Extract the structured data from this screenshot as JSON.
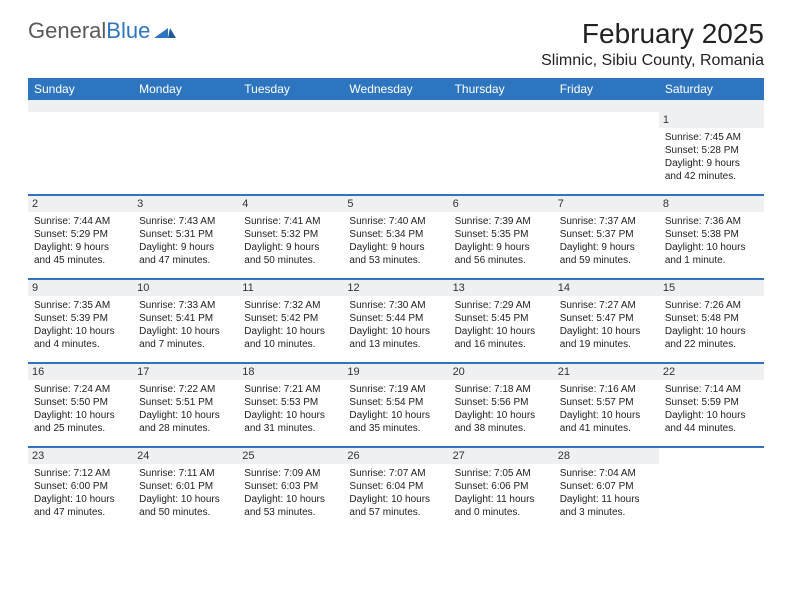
{
  "brand": {
    "part1": "General",
    "part2": "Blue"
  },
  "title": "February 2025",
  "location": "Slimnic, Sibiu County, Romania",
  "colors": {
    "accent": "#2e75c0",
    "header_bg": "#2e75c0",
    "header_text": "#ffffff",
    "daynum_bg": "#eef0f2",
    "text": "#222222",
    "page_bg": "#ffffff"
  },
  "weekdays": [
    "Sunday",
    "Monday",
    "Tuesday",
    "Wednesday",
    "Thursday",
    "Friday",
    "Saturday"
  ],
  "weeks": [
    [
      null,
      null,
      null,
      null,
      null,
      null,
      {
        "n": "1",
        "sunrise": "7:45 AM",
        "sunset": "5:28 PM",
        "daylight": "9 hours and 42 minutes."
      }
    ],
    [
      {
        "n": "2",
        "sunrise": "7:44 AM",
        "sunset": "5:29 PM",
        "daylight": "9 hours and 45 minutes."
      },
      {
        "n": "3",
        "sunrise": "7:43 AM",
        "sunset": "5:31 PM",
        "daylight": "9 hours and 47 minutes."
      },
      {
        "n": "4",
        "sunrise": "7:41 AM",
        "sunset": "5:32 PM",
        "daylight": "9 hours and 50 minutes."
      },
      {
        "n": "5",
        "sunrise": "7:40 AM",
        "sunset": "5:34 PM",
        "daylight": "9 hours and 53 minutes."
      },
      {
        "n": "6",
        "sunrise": "7:39 AM",
        "sunset": "5:35 PM",
        "daylight": "9 hours and 56 minutes."
      },
      {
        "n": "7",
        "sunrise": "7:37 AM",
        "sunset": "5:37 PM",
        "daylight": "9 hours and 59 minutes."
      },
      {
        "n": "8",
        "sunrise": "7:36 AM",
        "sunset": "5:38 PM",
        "daylight": "10 hours and 1 minute."
      }
    ],
    [
      {
        "n": "9",
        "sunrise": "7:35 AM",
        "sunset": "5:39 PM",
        "daylight": "10 hours and 4 minutes."
      },
      {
        "n": "10",
        "sunrise": "7:33 AM",
        "sunset": "5:41 PM",
        "daylight": "10 hours and 7 minutes."
      },
      {
        "n": "11",
        "sunrise": "7:32 AM",
        "sunset": "5:42 PM",
        "daylight": "10 hours and 10 minutes."
      },
      {
        "n": "12",
        "sunrise": "7:30 AM",
        "sunset": "5:44 PM",
        "daylight": "10 hours and 13 minutes."
      },
      {
        "n": "13",
        "sunrise": "7:29 AM",
        "sunset": "5:45 PM",
        "daylight": "10 hours and 16 minutes."
      },
      {
        "n": "14",
        "sunrise": "7:27 AM",
        "sunset": "5:47 PM",
        "daylight": "10 hours and 19 minutes."
      },
      {
        "n": "15",
        "sunrise": "7:26 AM",
        "sunset": "5:48 PM",
        "daylight": "10 hours and 22 minutes."
      }
    ],
    [
      {
        "n": "16",
        "sunrise": "7:24 AM",
        "sunset": "5:50 PM",
        "daylight": "10 hours and 25 minutes."
      },
      {
        "n": "17",
        "sunrise": "7:22 AM",
        "sunset": "5:51 PM",
        "daylight": "10 hours and 28 minutes."
      },
      {
        "n": "18",
        "sunrise": "7:21 AM",
        "sunset": "5:53 PM",
        "daylight": "10 hours and 31 minutes."
      },
      {
        "n": "19",
        "sunrise": "7:19 AM",
        "sunset": "5:54 PM",
        "daylight": "10 hours and 35 minutes."
      },
      {
        "n": "20",
        "sunrise": "7:18 AM",
        "sunset": "5:56 PM",
        "daylight": "10 hours and 38 minutes."
      },
      {
        "n": "21",
        "sunrise": "7:16 AM",
        "sunset": "5:57 PM",
        "daylight": "10 hours and 41 minutes."
      },
      {
        "n": "22",
        "sunrise": "7:14 AM",
        "sunset": "5:59 PM",
        "daylight": "10 hours and 44 minutes."
      }
    ],
    [
      {
        "n": "23",
        "sunrise": "7:12 AM",
        "sunset": "6:00 PM",
        "daylight": "10 hours and 47 minutes."
      },
      {
        "n": "24",
        "sunrise": "7:11 AM",
        "sunset": "6:01 PM",
        "daylight": "10 hours and 50 minutes."
      },
      {
        "n": "25",
        "sunrise": "7:09 AM",
        "sunset": "6:03 PM",
        "daylight": "10 hours and 53 minutes."
      },
      {
        "n": "26",
        "sunrise": "7:07 AM",
        "sunset": "6:04 PM",
        "daylight": "10 hours and 57 minutes."
      },
      {
        "n": "27",
        "sunrise": "7:05 AM",
        "sunset": "6:06 PM",
        "daylight": "11 hours and 0 minutes."
      },
      {
        "n": "28",
        "sunrise": "7:04 AM",
        "sunset": "6:07 PM",
        "daylight": "11 hours and 3 minutes."
      },
      null
    ]
  ],
  "labels": {
    "sunrise": "Sunrise:",
    "sunset": "Sunset:",
    "daylight": "Daylight:"
  }
}
